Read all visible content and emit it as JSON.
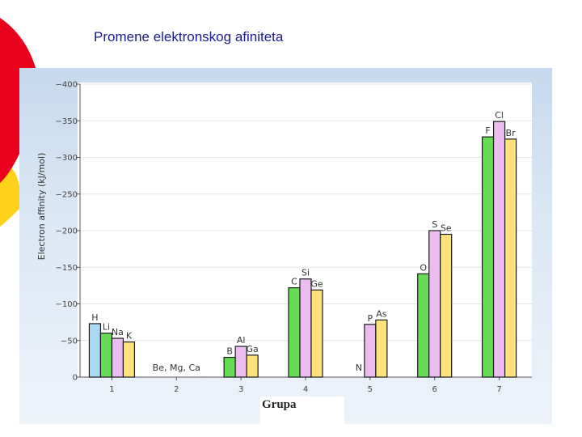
{
  "slide": {
    "title": "Promene elektronskog afiniteta"
  },
  "colors": {
    "deco_red": "#e8001c",
    "deco_yellow": "#ffd21a",
    "panel_top": "#c6d9ee",
    "bar_blue": "#a9d9f5",
    "bar_green": "#66dd55",
    "bar_pink": "#ecbcf0",
    "bar_yellow": "#ffe27a",
    "grid": "#e6e6e6"
  },
  "chart_data": {
    "type": "bar",
    "xlabel": "Grupa",
    "ylabel": "Electron affinity (kJ/mol)",
    "ylim": [
      0,
      -400
    ],
    "y_ticks": [
      0,
      -50,
      -100,
      -150,
      -200,
      -250,
      -300,
      -350,
      -400
    ],
    "y_tick_labels": [
      "0",
      "−50",
      "−100",
      "−150",
      "−200",
      "−250",
      "−300",
      "−350",
      "−400"
    ],
    "categories": [
      "1",
      "2",
      "3",
      "4",
      "5",
      "6",
      "7"
    ],
    "grid": true,
    "groups": [
      {
        "category": "1",
        "elements": [
          {
            "symbol": "H",
            "value": -73,
            "color": "blue"
          },
          {
            "symbol": "Li",
            "value": -60,
            "color": "green"
          },
          {
            "symbol": "Na",
            "value": -53,
            "color": "pink"
          },
          {
            "symbol": "K",
            "value": -48,
            "color": "yellow"
          }
        ]
      },
      {
        "category": "2",
        "elements": [],
        "annotation": "Be, Mg, Ca"
      },
      {
        "category": "3",
        "elements": [
          {
            "symbol": "B",
            "value": -27,
            "color": "green"
          },
          {
            "symbol": "Al",
            "value": -42,
            "color": "pink"
          },
          {
            "symbol": "Ga",
            "value": -30,
            "color": "yellow"
          }
        ]
      },
      {
        "category": "4",
        "elements": [
          {
            "symbol": "C",
            "value": -122,
            "color": "green"
          },
          {
            "symbol": "Si",
            "value": -134,
            "color": "pink"
          },
          {
            "symbol": "Ge",
            "value": -119,
            "color": "yellow"
          }
        ]
      },
      {
        "category": "5",
        "elements": [
          {
            "symbol": "N",
            "value": 0,
            "color": "green"
          },
          {
            "symbol": "P",
            "value": -72,
            "color": "pink"
          },
          {
            "symbol": "As",
            "value": -78,
            "color": "yellow"
          }
        ]
      },
      {
        "category": "6",
        "elements": [
          {
            "symbol": "O",
            "value": -141,
            "color": "green"
          },
          {
            "symbol": "S",
            "value": -200,
            "color": "pink"
          },
          {
            "symbol": "Se",
            "value": -195,
            "color": "yellow"
          }
        ]
      },
      {
        "category": "7",
        "elements": [
          {
            "symbol": "F",
            "value": -328,
            "color": "green"
          },
          {
            "symbol": "Cl",
            "value": -349,
            "color": "pink"
          },
          {
            "symbol": "Br",
            "value": -325,
            "color": "yellow"
          }
        ]
      }
    ]
  }
}
